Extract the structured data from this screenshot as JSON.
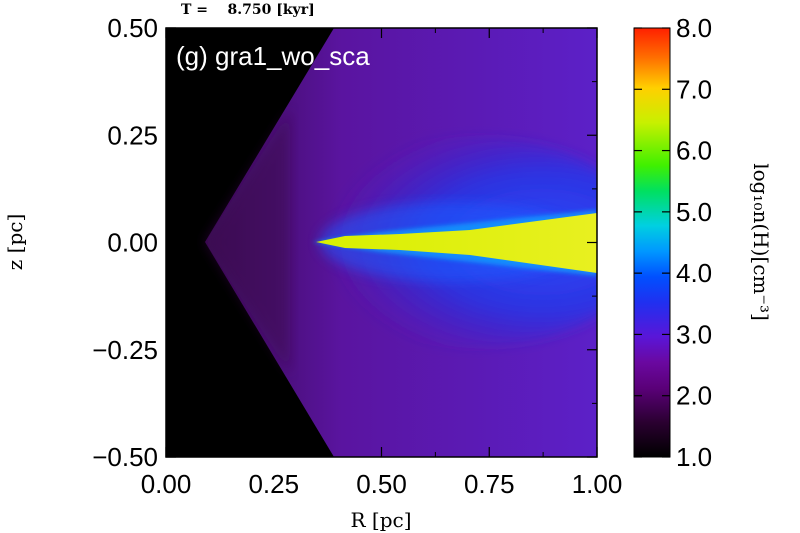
{
  "time_label": "T =    8.750 [kyr]",
  "chart_data": {
    "type": "heatmap",
    "title": "(g) gra1_wo_sca",
    "xlabel": "R [pc]",
    "ylabel": "z [pc]",
    "xlim": [
      0.0,
      1.0
    ],
    "ylim": [
      -0.5,
      0.5
    ],
    "x_ticks": [
      "0.00",
      "0.25",
      "0.50",
      "0.75",
      "1.00"
    ],
    "y_ticks": [
      "0.50",
      "0.25",
      "0.00",
      "−0.25",
      "−0.50"
    ],
    "x_tick_values": [
      0.0,
      0.25,
      0.5,
      0.75,
      1.0
    ],
    "y_tick_values": [
      0.5,
      0.25,
      0.0,
      -0.25,
      -0.5
    ],
    "colorbar": {
      "label": "log₁₀n(H)[cm⁻³]",
      "range": [
        1.0,
        8.0
      ],
      "ticks": [
        "8.0",
        "7.0",
        "6.0",
        "5.0",
        "4.0",
        "3.0",
        "2.0",
        "1.0"
      ],
      "tick_values": [
        8.0,
        7.0,
        6.0,
        5.0,
        4.0,
        3.0,
        2.0,
        1.0
      ],
      "colors": [
        "#000000",
        "#3a0040",
        "#6a0088",
        "#5a16d8",
        "#1030ff",
        "#0088ff",
        "#00c8ff",
        "#00e070",
        "#40f000",
        "#e8f000",
        "#ff9000",
        "#ff2000"
      ]
    },
    "features": {
      "void_apex_R": 0.09,
      "disk_start_R": 0.34,
      "disk_level_log_n": 6.8,
      "envelope_level_log_n": 2.2,
      "void_level_log_n": 1.0
    }
  }
}
